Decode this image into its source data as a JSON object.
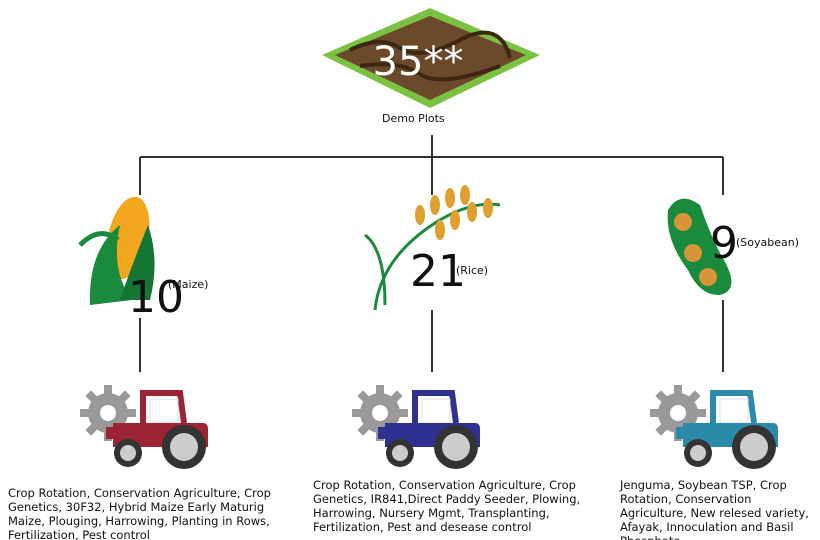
{
  "root": {
    "value": "35**",
    "label": "Demo Plots"
  },
  "branches": [
    {
      "value": "10",
      "crop": "(Maize)",
      "practices": "Crop Rotation, Conservation Agriculture, Crop Genetics, 30F32, Hybrid Maize Early Maturig Maize, Plouging, Harrowing, Planting in Rows, Fertilization, Pest control"
    },
    {
      "value": "21",
      "crop": "(Rice)",
      "practices": "Crop Rotation, Conservation Agriculture, Crop Genetics, IR841,Direct Paddy Seeder, Plowing, Harrowing, Nursery Mgmt, Transplanting, Fertilization, Pest and desease control"
    },
    {
      "value": "9",
      "crop": "(Soyabean)",
      "practices": "Jenguma, Soybean TSP, Crop Rotation, Conservation Agriculture, New relesed variety, Afayak, Innoculation and Basil Phosphate"
    }
  ]
}
